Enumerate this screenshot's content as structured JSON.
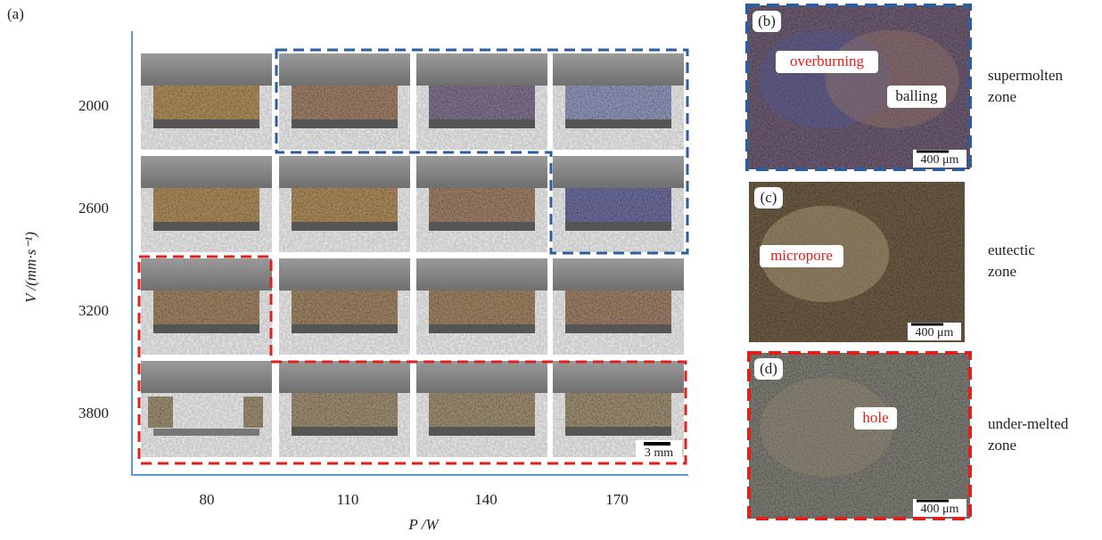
{
  "panel_a": {
    "label": "(a)",
    "y_axis_label": "V /(mm·s⁻¹)",
    "y_labels": [
      "2000",
      "2600",
      "3200",
      "3800"
    ],
    "x_axis_label": "P /W",
    "x_labels": [
      "80",
      "110",
      "140",
      "170"
    ],
    "scale_bar": "3 mm"
  },
  "panels": [
    {
      "label": "(b)",
      "annotations": [
        "overburning",
        "balling"
      ],
      "scale_bar": "400 μm",
      "zone": [
        "supermolten",
        "zone"
      ]
    },
    {
      "label": "(c)",
      "annotations": [
        "micropore"
      ],
      "scale_bar": "400 μm",
      "zone": [
        "eutectic",
        "zone"
      ]
    },
    {
      "label": "(d)",
      "annotations": [
        "hole"
      ],
      "scale_bar": "400 μm",
      "zone": [
        "under-melted",
        "zone"
      ]
    }
  ]
}
